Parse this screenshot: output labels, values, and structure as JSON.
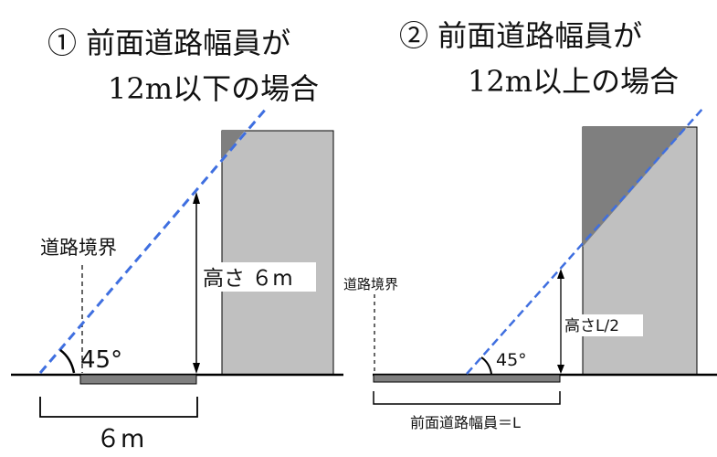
{
  "left": {
    "title_line1": "① 前面道路幅員が",
    "title_line2": "12m以下の場合",
    "boundary_label": "道路境界",
    "height_label": "高さ ６m",
    "angle_label": "45°",
    "width_label": "６m"
  },
  "right": {
    "title_line1": "② 前面道路幅員が",
    "title_line2": "12m以上の場合",
    "boundary_label": "道路境界",
    "height_label": "高さL/2",
    "angle_label": "45°",
    "width_label": "前面道路幅員＝L"
  },
  "colors": {
    "building": "#c0c0c0",
    "shaded": "#7f7f7f",
    "road": "#7f7f7f",
    "slope_line": "#3f6fe0"
  }
}
